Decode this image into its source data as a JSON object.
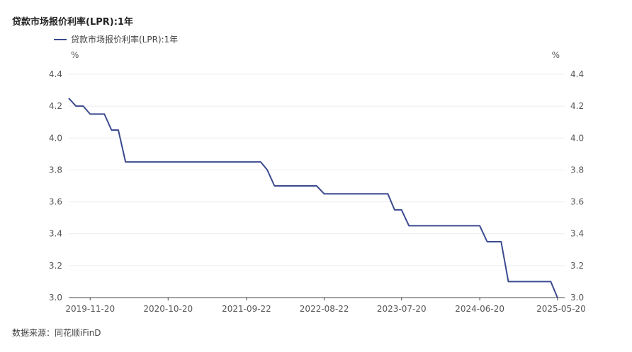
{
  "title": "贷款市场报价利率(LPR):1年",
  "legend": [
    {
      "label": "贷款市场报价利率(LPR):1年",
      "color": "#3b4a8f"
    }
  ],
  "source": "数据来源：同花顺iFinD",
  "chart_data": {
    "type": "line",
    "title": "贷款市场报价利率(LPR):1年",
    "ylabel_left": "%",
    "ylabel_right": "%",
    "ylim": [
      3.0,
      4.4
    ],
    "yticks": [
      "4.4",
      "4.2",
      "4.0",
      "3.8",
      "3.6",
      "3.4",
      "3.2",
      "3.0"
    ],
    "xlim": [
      "2019-08-20",
      "2025-06-20"
    ],
    "xticks": [
      "2019-11-20",
      "2020-10-20",
      "2021-09-22",
      "2022-08-22",
      "2023-07-20",
      "2024-06-20",
      "2025-05-20"
    ],
    "grid": "horizontal",
    "legend_position": "top-left",
    "series": [
      {
        "name": "贷款市场报价利率(LPR):1年",
        "color": "#3b4a8f",
        "points": [
          {
            "date": "2019-08-20",
            "value": 4.25
          },
          {
            "date": "2019-09-20",
            "value": 4.2
          },
          {
            "date": "2019-10-21",
            "value": 4.2
          },
          {
            "date": "2019-11-20",
            "value": 4.15
          },
          {
            "date": "2019-12-20",
            "value": 4.15
          },
          {
            "date": "2020-01-20",
            "value": 4.15
          },
          {
            "date": "2020-02-20",
            "value": 4.05
          },
          {
            "date": "2020-03-20",
            "value": 4.05
          },
          {
            "date": "2020-04-20",
            "value": 3.85
          },
          {
            "date": "2021-11-22",
            "value": 3.85
          },
          {
            "date": "2021-12-20",
            "value": 3.8
          },
          {
            "date": "2022-01-20",
            "value": 3.7
          },
          {
            "date": "2022-07-20",
            "value": 3.7
          },
          {
            "date": "2022-08-22",
            "value": 3.65
          },
          {
            "date": "2023-05-22",
            "value": 3.65
          },
          {
            "date": "2023-06-20",
            "value": 3.55
          },
          {
            "date": "2023-07-20",
            "value": 3.55
          },
          {
            "date": "2023-08-21",
            "value": 3.45
          },
          {
            "date": "2024-06-20",
            "value": 3.45
          },
          {
            "date": "2024-07-22",
            "value": 3.35
          },
          {
            "date": "2024-09-20",
            "value": 3.35
          },
          {
            "date": "2024-10-21",
            "value": 3.1
          },
          {
            "date": "2025-04-21",
            "value": 3.1
          },
          {
            "date": "2025-05-20",
            "value": 3.0
          }
        ]
      }
    ]
  }
}
